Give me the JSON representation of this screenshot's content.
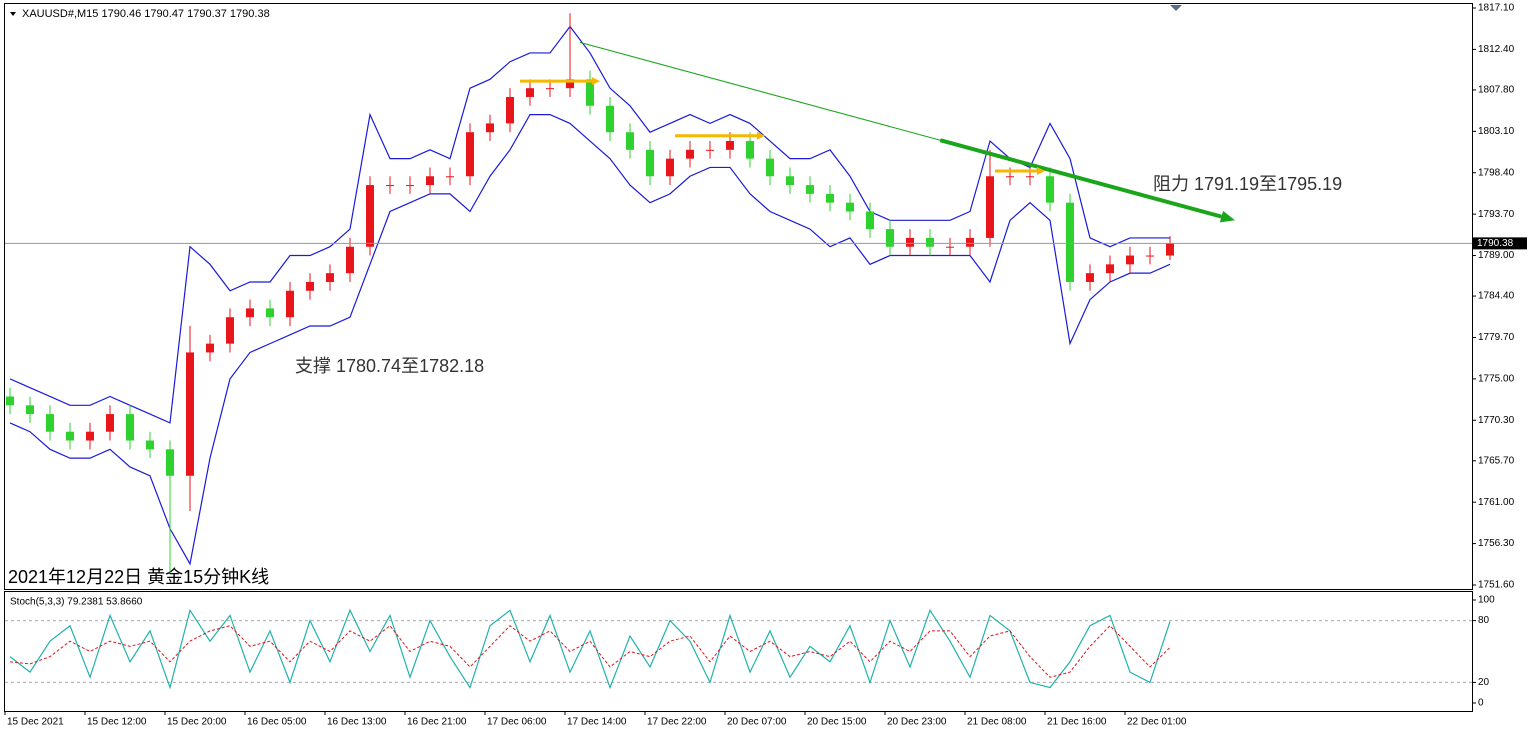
{
  "chart_data": {
    "type": "candlestick",
    "header": "XAUUSD#,M15  1790.46 1790.47 1790.37 1790.38",
    "title": "2021年12月22日 黄金15分钟K线",
    "categories": [
      "15 Dec 2021",
      null,
      null,
      null,
      "15 Dec 12:00",
      null,
      null,
      null,
      "15 Dec 20:00",
      null,
      null,
      null,
      "16 Dec 05:00",
      null,
      null,
      null,
      "16 Dec 13:00",
      null,
      null,
      null,
      "16 Dec 21:00",
      null,
      null,
      null,
      "17 Dec 06:00",
      null,
      null,
      null,
      "17 Dec 14:00",
      null,
      null,
      null,
      "17 Dec 22:00",
      null,
      null,
      null,
      "20 Dec 07:00",
      null,
      null,
      null,
      "20 Dec 15:00",
      null,
      null,
      null,
      "20 Dec 23:00",
      null,
      null,
      null,
      "21 Dec 08:00",
      null,
      null,
      null,
      "21 Dec 16:00",
      null,
      null,
      null,
      "22 Dec 01:00",
      null,
      null
    ],
    "open": [
      1773,
      1772,
      1771,
      1769,
      1768,
      1769,
      1771,
      1768,
      1767,
      1764,
      1778,
      1779,
      1782,
      1783,
      1782,
      1785,
      1786,
      1787,
      1790,
      1797,
      1797,
      1797,
      1798,
      1798,
      1803,
      1804,
      1807,
      1808,
      1808,
      1809,
      1806,
      1803,
      1801,
      1798,
      1800,
      1801,
      1801,
      1802,
      1800,
      1798,
      1797,
      1796,
      1795,
      1794,
      1792,
      1790,
      1791,
      1790,
      1790,
      1791,
      1798,
      1798,
      1798,
      1795,
      1786,
      1787,
      1788,
      1789,
      1789
    ],
    "high": [
      1774,
      1773,
      1772,
      1770,
      1770,
      1772,
      1772,
      1769,
      1768,
      1781,
      1780,
      1783,
      1784,
      1784,
      1786,
      1787,
      1788,
      1791,
      1798,
      1798,
      1798,
      1799,
      1799,
      1804,
      1805,
      1808,
      1809,
      1809,
      1816.5,
      1810,
      1807,
      1804,
      1802,
      1801,
      1802,
      1802,
      1803,
      1803,
      1801,
      1799,
      1798,
      1797,
      1796,
      1795,
      1793,
      1792,
      1792,
      1791,
      1792,
      1801,
      1799,
      1799,
      1799,
      1796,
      1788,
      1789,
      1790,
      1790,
      1791.2
    ],
    "low": [
      1771,
      1770,
      1768,
      1767,
      1767,
      1768,
      1767,
      1766,
      1753,
      1760,
      1777,
      1778,
      1781,
      1781,
      1781,
      1784,
      1785,
      1786,
      1789,
      1796,
      1796,
      1796,
      1797,
      1797,
      1802,
      1803,
      1806,
      1807,
      1807,
      1805,
      1802,
      1800,
      1797,
      1797,
      1799,
      1800,
      1800,
      1799,
      1797,
      1796,
      1795,
      1794,
      1793,
      1791,
      1789,
      1789,
      1789,
      1789,
      1789,
      1790,
      1797,
      1797,
      1794,
      1785,
      1785,
      1786,
      1787,
      1788,
      1788.5
    ],
    "close": [
      1772,
      1771,
      1769,
      1768,
      1769,
      1771,
      1768,
      1767,
      1764,
      1778,
      1779,
      1782,
      1783,
      1782,
      1785,
      1786,
      1787,
      1790,
      1797,
      1797,
      1797,
      1798,
      1798,
      1803,
      1804,
      1807,
      1808,
      1808,
      1809,
      1806,
      1803,
      1801,
      1798,
      1800,
      1801,
      1801,
      1802,
      1800,
      1798,
      1797,
      1796,
      1795,
      1794,
      1792,
      1790,
      1791,
      1790,
      1790,
      1791,
      1798,
      1798,
      1798,
      1795,
      1786,
      1787,
      1788,
      1789,
      1789,
      1790.38
    ],
    "up_color": "#e8161b",
    "down_color": "#2fd12f",
    "bands": {
      "color": "#1a1ad8",
      "upper": [
        1775,
        1774,
        1773,
        1772,
        1772,
        1773,
        1772,
        1771,
        1770,
        1790,
        1788,
        1785,
        1786,
        1786,
        1789,
        1789,
        1790,
        1792,
        1805,
        1800,
        1800,
        1801,
        1800,
        1808,
        1809,
        1811,
        1812,
        1812,
        1815,
        1812,
        1808,
        1806,
        1803,
        1804,
        1805,
        1804,
        1805,
        1804,
        1802,
        1800,
        1800,
        1801,
        1798,
        1794,
        1793,
        1793,
        1793,
        1793,
        1794,
        1802,
        1800,
        1799,
        1804,
        1800,
        1791,
        1790,
        1791,
        1791,
        1791
      ],
      "lower": [
        1770,
        1769,
        1767,
        1766,
        1766,
        1767,
        1765,
        1764,
        1758,
        1754,
        1766,
        1775,
        1778,
        1779,
        1780,
        1781,
        1781,
        1782,
        1788,
        1794,
        1795,
        1796,
        1796,
        1794,
        1798,
        1801,
        1805,
        1805,
        1804,
        1802,
        1800,
        1797,
        1795,
        1796,
        1798,
        1799,
        1799,
        1796,
        1794,
        1793,
        1792,
        1790,
        1791,
        1788,
        1789,
        1789,
        1789,
        1789,
        1789,
        1786,
        1793,
        1795,
        1793,
        1779,
        1784,
        1786,
        1787,
        1787,
        1788
      ]
    },
    "ylim": [
      1751.6,
      1817.1
    ],
    "yticks": [
      {
        "value": 1817.1,
        "label": "1817.10"
      },
      {
        "value": 1812.4,
        "label": "1812.40"
      },
      {
        "value": 1807.8,
        "label": "1807.80"
      },
      {
        "value": 1803.1,
        "label": "1803.10"
      },
      {
        "value": 1798.4,
        "label": "1798.40"
      },
      {
        "value": 1793.7,
        "label": "1793.70"
      },
      {
        "value": 1789,
        "label": "1789.00"
      },
      {
        "value": 1784.4,
        "label": "1784.40"
      },
      {
        "value": 1779.7,
        "label": "1779.70"
      },
      {
        "value": 1775,
        "label": "1775.00"
      },
      {
        "value": 1770.3,
        "label": "1770.30"
      },
      {
        "value": 1765.7,
        "label": "1765.70"
      },
      {
        "value": 1761,
        "label": "1761.00"
      },
      {
        "value": 1756.3,
        "label": "1756.30"
      },
      {
        "value": 1751.6,
        "label": "1751.60"
      }
    ],
    "current_price": {
      "value": 1790.38,
      "label": "1790.38"
    },
    "trendline": {
      "color": "#1aa51a",
      "from": [
        28.5,
        1813.2
      ],
      "to": [
        61.25,
        1793
      ]
    },
    "levels": [
      {
        "value": 1808.8,
        "from": 25.5,
        "to": 29.5
      },
      {
        "value": 1802.6,
        "from": 33.25,
        "to": 37.75
      },
      {
        "value": 1798.6,
        "from": 49.25,
        "to": 51.75
      }
    ],
    "level_color": "#f5b800",
    "annotations": [
      "支撑 1780.74至1782.18",
      "阻力 1791.19至1795.19"
    ],
    "stoch": {
      "label": "Stoch(5,3,3) 79.2381 53.8660",
      "ylim": [
        0,
        100
      ],
      "yticks": [
        0,
        20,
        80,
        100
      ],
      "levels": [
        20,
        80
      ],
      "main": {
        "color": "#20b2aa",
        "values": [
          45,
          30,
          60,
          75,
          25,
          85,
          40,
          70,
          15,
          90,
          60,
          85,
          30,
          70,
          20,
          80,
          40,
          90,
          50,
          85,
          25,
          80,
          45,
          15,
          75,
          90,
          40,
          85,
          30,
          70,
          15,
          65,
          35,
          80,
          60,
          20,
          85,
          30,
          70,
          25,
          55,
          40,
          75,
          20,
          80,
          35,
          90,
          60,
          25,
          85,
          70,
          20,
          15,
          40,
          75,
          85,
          30,
          20,
          79.24
        ]
      },
      "signal": {
        "color": "#e0161b",
        "values": [
          40,
          38,
          45,
          60,
          50,
          60,
          55,
          60,
          40,
          60,
          70,
          75,
          55,
          60,
          40,
          60,
          50,
          70,
          60,
          75,
          50,
          60,
          55,
          35,
          55,
          75,
          60,
          70,
          50,
          60,
          35,
          50,
          45,
          60,
          65,
          40,
          65,
          50,
          60,
          45,
          50,
          45,
          60,
          40,
          60,
          50,
          70,
          70,
          45,
          65,
          70,
          45,
          25,
          30,
          55,
          75,
          55,
          35,
          53.87
        ]
      }
    }
  }
}
